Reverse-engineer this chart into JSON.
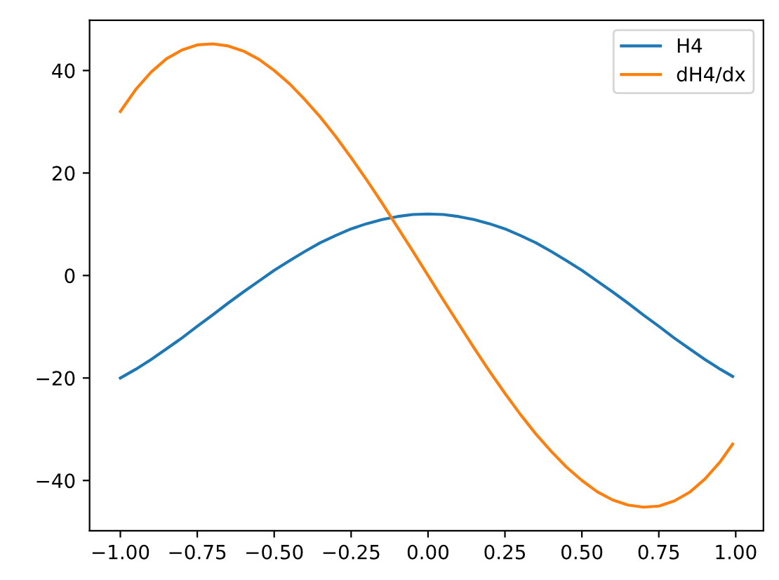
{
  "chart_data": {
    "type": "line",
    "x": [
      -1,
      -0.95,
      -0.9,
      -0.85,
      -0.8,
      -0.75,
      -0.7,
      -0.65,
      -0.6,
      -0.55,
      -0.5,
      -0.45,
      -0.4,
      -0.35,
      -0.3,
      -0.25,
      -0.2,
      -0.15,
      -0.1,
      -0.05,
      0,
      0.05,
      0.1,
      0.15,
      0.2,
      0.25,
      0.3,
      0.35,
      0.4,
      0.45,
      0.5,
      0.55,
      0.6,
      0.65,
      0.7,
      0.75,
      0.8,
      0.85,
      0.9,
      0.95,
      0.99
    ],
    "series": [
      {
        "name": "H4",
        "color": "#1f77b4",
        "values": [
          -20.0,
          -18.3,
          -16.4,
          -14.3,
          -12.2,
          -9.9,
          -7.7,
          -5.4,
          -3.2,
          -1.1,
          1.0,
          2.9,
          4.7,
          6.4,
          7.8,
          9.1,
          10.1,
          10.9,
          11.5,
          11.9,
          12.0,
          11.9,
          11.5,
          10.9,
          10.1,
          9.1,
          7.8,
          6.4,
          4.7,
          2.9,
          1.0,
          -1.1,
          -3.2,
          -5.4,
          -7.7,
          -9.9,
          -12.2,
          -14.3,
          -16.4,
          -18.3,
          -19.7
        ]
      },
      {
        "name": "dH4/dx",
        "color": "#ff7f0e",
        "values": [
          32.0,
          36.3,
          39.7,
          42.3,
          44.0,
          45.0,
          45.2,
          44.8,
          43.8,
          42.2,
          40.0,
          37.4,
          34.3,
          30.9,
          27.1,
          23.0,
          18.7,
          14.2,
          9.5,
          4.8,
          0.0,
          -4.8,
          -9.5,
          -14.2,
          -18.7,
          -23.0,
          -27.1,
          -30.9,
          -34.3,
          -37.4,
          -40.0,
          -42.2,
          -43.8,
          -44.8,
          -45.2,
          -45.0,
          -44.0,
          -42.3,
          -39.7,
          -36.3,
          -32.9
        ]
      }
    ],
    "xlim": [
      -1.1,
      1.09
    ],
    "ylim": [
      -49.8,
      49.8
    ],
    "xticks": [
      {
        "value": -1,
        "label": "−1.00"
      },
      {
        "value": -0.75,
        "label": "−0.75"
      },
      {
        "value": -0.5,
        "label": "−0.50"
      },
      {
        "value": -0.25,
        "label": "−0.25"
      },
      {
        "value": 0,
        "label": "0.00"
      },
      {
        "value": 0.25,
        "label": "0.25"
      },
      {
        "value": 0.5,
        "label": "0.50"
      },
      {
        "value": 0.75,
        "label": "0.75"
      },
      {
        "value": 1,
        "label": "1.00"
      }
    ],
    "yticks": [
      {
        "value": -40,
        "label": "−40"
      },
      {
        "value": -20,
        "label": "−20"
      },
      0,
      20,
      40
    ],
    "legend": "top right",
    "grid": false,
    "line_style": "solid"
  }
}
